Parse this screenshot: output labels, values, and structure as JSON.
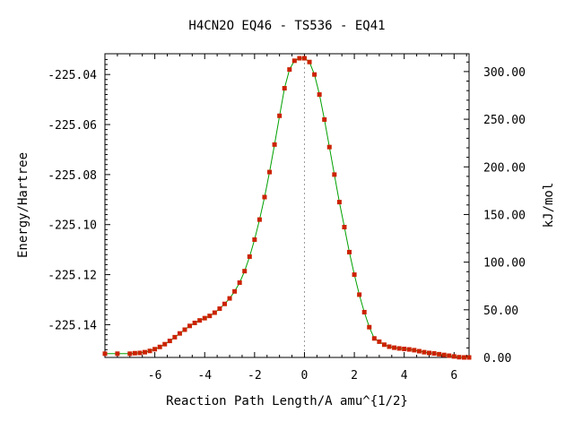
{
  "chart_data": {
    "type": "line",
    "title": "H4CN2O   EQ46 - TS536 - EQ41",
    "xlabel": "Reaction Path Length/A amu^{1/2}",
    "ylabel": "Energy/Hartree",
    "y2label": "kJ/mol",
    "xlim": [
      -8.0,
      6.6
    ],
    "ylim": [
      -225.1531,
      -225.0317
    ],
    "y2lim": [
      0,
      318.7
    ],
    "x_ticks": [
      -6,
      -4,
      -2,
      0,
      2,
      4,
      6
    ],
    "x_tick_labels": [
      "-6",
      "-4",
      "-2",
      "0",
      "2",
      "4",
      "6"
    ],
    "y_ticks": [
      -225.04,
      -225.06,
      -225.08,
      -225.1,
      -225.12,
      -225.14
    ],
    "y_tick_labels": [
      "-225.04",
      "-225.06",
      "-225.08",
      "-225.10",
      "-225.12",
      "-225.14"
    ],
    "y2_ticks": [
      300,
      250,
      200,
      150,
      100,
      50,
      0
    ],
    "y2_tick_labels": [
      "300.00",
      "250.00",
      "200.00",
      "150.00",
      "100.00",
      "50.00",
      "0.00"
    ],
    "ts_marker_x": 0,
    "grid": false,
    "line_color": "#00a000",
    "marker_color": "#cc2200",
    "series": [
      {
        "x": [
          -8.0,
          -7.5,
          -7.0,
          -6.8,
          -6.6,
          -6.4,
          -6.2,
          -6.0,
          -5.8,
          -5.6,
          -5.4,
          -5.2,
          -5.0,
          -4.8,
          -4.6,
          -4.4,
          -4.2,
          -4.0,
          -3.8,
          -3.6,
          -3.4,
          -3.2,
          -3.0,
          -2.8,
          -2.6,
          -2.4,
          -2.2,
          -2.0,
          -1.8,
          -1.6,
          -1.4,
          -1.2,
          -1.0,
          -0.8,
          -0.6,
          -0.4,
          -0.2,
          0.0,
          0.2,
          0.4,
          0.6,
          0.8,
          1.0,
          1.2,
          1.4,
          1.6,
          1.8,
          2.0,
          2.2,
          2.4,
          2.6,
          2.8,
          3.0,
          3.2,
          3.4,
          3.6,
          3.8,
          4.0,
          4.2,
          4.4,
          4.6,
          4.8,
          5.0,
          5.2,
          5.4,
          5.6,
          5.8,
          6.0,
          6.2,
          6.4,
          6.6
        ],
        "y": [
          -225.1516,
          -225.1516,
          -225.1516,
          -225.1514,
          -225.1513,
          -225.151,
          -225.1505,
          -225.1498,
          -225.1489,
          -225.1478,
          -225.1465,
          -225.145,
          -225.1435,
          -225.142,
          -225.1405,
          -225.1393,
          -225.1383,
          -225.1374,
          -225.1365,
          -225.1352,
          -225.1336,
          -225.1317,
          -225.1295,
          -225.1267,
          -225.1232,
          -225.1186,
          -225.1128,
          -225.106,
          -225.098,
          -225.089,
          -225.079,
          -225.068,
          -225.0565,
          -225.0455,
          -225.038,
          -225.0345,
          -225.0335,
          -225.0335,
          -225.035,
          -225.04,
          -225.048,
          -225.058,
          -225.069,
          -225.08,
          -225.091,
          -225.101,
          -225.111,
          -225.12,
          -225.128,
          -225.135,
          -225.141,
          -225.1455,
          -225.1468,
          -225.148,
          -225.1488,
          -225.1492,
          -225.1495,
          -225.1497,
          -225.1499,
          -225.1502,
          -225.1506,
          -225.151,
          -225.1513,
          -225.1515,
          -225.1518,
          -225.1521,
          -225.1524,
          -225.1527,
          -225.153,
          -225.1531,
          -225.1531
        ]
      }
    ]
  }
}
